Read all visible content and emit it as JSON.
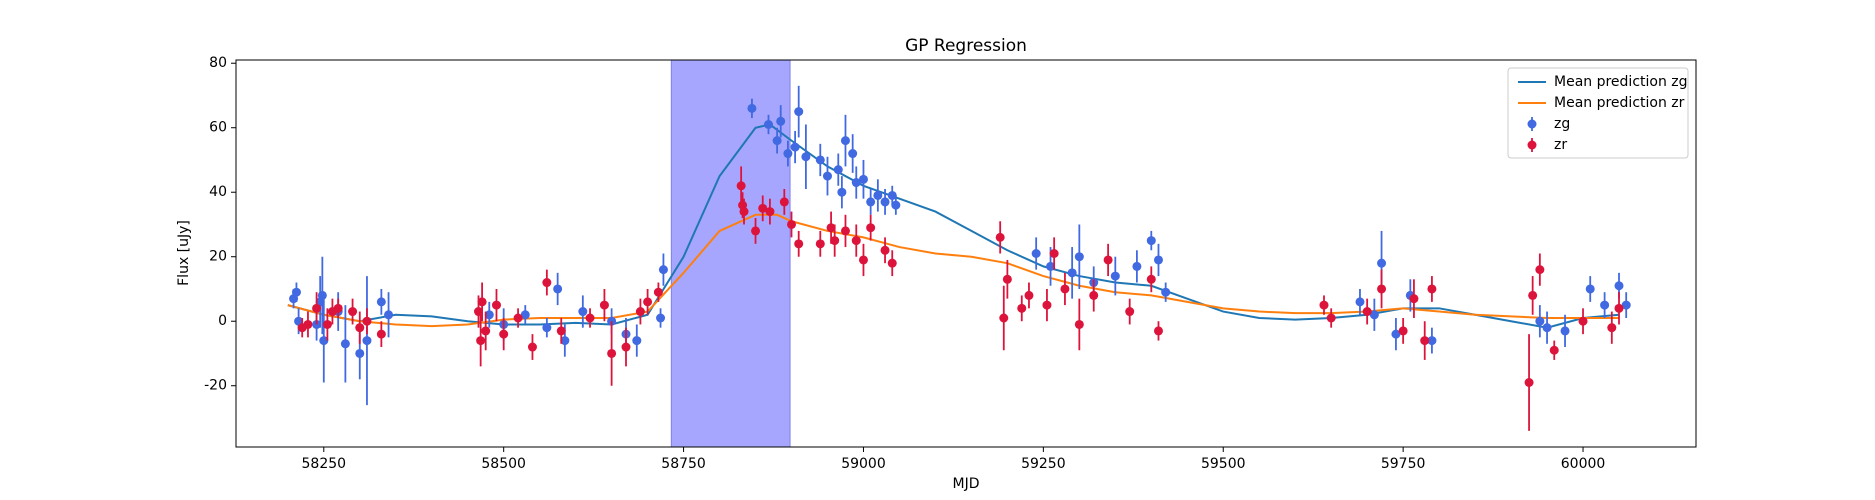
{
  "chart_data": {
    "type": "errorbar",
    "title": "GP Regression",
    "xlabel": "MJD",
    "ylabel": "Flux [uJy]",
    "xlim": [
      58128,
      60157
    ],
    "ylim": [
      -39,
      81
    ],
    "xticks": [
      58250,
      58500,
      58750,
      59000,
      59250,
      59500,
      59750,
      60000
    ],
    "yticks": [
      -20,
      0,
      20,
      40,
      60,
      80
    ],
    "legend": "upper right",
    "span": {
      "x": [
        58733,
        58898
      ],
      "color": "#a6a6ff"
    },
    "series": [
      {
        "name": "Mean prediction zg",
        "color": "#1f77b4",
        "type": "line",
        "x": [
          58200,
          58250,
          58300,
          58350,
          58400,
          58450,
          58500,
          58550,
          58600,
          58650,
          58700,
          58750,
          58800,
          58850,
          58870,
          58900,
          58950,
          59000,
          59050,
          59100,
          59150,
          59200,
          59250,
          59300,
          59350,
          59400,
          59450,
          59500,
          59550,
          59600,
          59650,
          59700,
          59750,
          59800,
          59850,
          59900,
          59950,
          60000,
          60050
        ],
        "values": [
          5,
          2,
          0,
          2,
          1.5,
          0,
          -1,
          -1,
          -0.5,
          -1,
          2,
          20,
          45,
          60,
          61,
          56,
          48,
          42,
          38,
          34,
          28,
          22,
          17,
          14,
          12,
          11,
          7,
          3,
          1,
          0.5,
          1,
          2,
          4,
          4,
          2,
          0,
          -2,
          1,
          2
        ]
      },
      {
        "name": "Mean prediction zr",
        "color": "#ff7f0e",
        "type": "line",
        "x": [
          58200,
          58250,
          58300,
          58350,
          58400,
          58450,
          58500,
          58550,
          58600,
          58650,
          58700,
          58750,
          58800,
          58850,
          58880,
          58900,
          58950,
          59000,
          59050,
          59100,
          59150,
          59200,
          59250,
          59300,
          59350,
          59400,
          59450,
          59500,
          59550,
          59600,
          59650,
          59700,
          59750,
          59800,
          59850,
          59900,
          59950,
          60000,
          60050
        ],
        "values": [
          5,
          2,
          0,
          -1,
          -1.5,
          -1,
          0.5,
          1,
          1,
          1,
          3,
          15,
          28,
          33,
          33,
          31,
          28,
          26,
          23,
          21,
          20,
          18,
          14,
          11,
          9,
          8,
          6,
          4,
          3,
          2.5,
          2.5,
          3,
          4,
          3,
          2,
          1.5,
          1,
          1,
          1
        ]
      },
      {
        "name": "zg",
        "color": "#4169e1",
        "type": "errorbar",
        "x": [
          58208,
          58212,
          58215,
          58240,
          58245,
          58248,
          58250,
          58270,
          58280,
          58300,
          58310,
          58330,
          58340,
          58480,
          58500,
          58530,
          58560,
          58575,
          58585,
          58610,
          58650,
          58670,
          58685,
          58718,
          58722,
          58845,
          58868,
          58880,
          58885,
          58895,
          58905,
          58910,
          58920,
          58940,
          58950,
          58965,
          58970,
          58975,
          58985,
          58990,
          59000,
          59010,
          59020,
          59030,
          59040,
          59045,
          59240,
          59260,
          59290,
          59300,
          59320,
          59350,
          59380,
          59400,
          59410,
          59420,
          59690,
          59710,
          59720,
          59740,
          59760,
          59790,
          59940,
          59950,
          59975,
          60010,
          60030,
          60050,
          60060
        ],
        "values": [
          7,
          9,
          0,
          -1,
          6,
          8,
          -6,
          3,
          -7,
          -10,
          -6,
          6,
          2,
          2,
          -1,
          2,
          -2,
          10,
          -6,
          3,
          0,
          -4,
          -6,
          1,
          16,
          66,
          61,
          56,
          62,
          52,
          54,
          65,
          51,
          50,
          45,
          47,
          40,
          56,
          52,
          43,
          44,
          37,
          39,
          37,
          39,
          36,
          21,
          17,
          15,
          20,
          12,
          14,
          17,
          25,
          19,
          9,
          6,
          2,
          18,
          -4,
          8,
          -6,
          0,
          -2,
          -3,
          10,
          5,
          11,
          5
        ],
        "errors": [
          3,
          3,
          4,
          5,
          8,
          12,
          13,
          6,
          12,
          8,
          20,
          4,
          7,
          4,
          5,
          3,
          3,
          5,
          5,
          5,
          4,
          5,
          5,
          3,
          5,
          3,
          3,
          4,
          5,
          4,
          5,
          8,
          10,
          5,
          6,
          5,
          5,
          8,
          6,
          5,
          6,
          4,
          5,
          4,
          3,
          3,
          5,
          6,
          8,
          10,
          5,
          6,
          5,
          3,
          5,
          3,
          4,
          5,
          10,
          5,
          5,
          4,
          5,
          5,
          5,
          4,
          4,
          4,
          4
        ]
      },
      {
        "name": "zr",
        "color": "#dc143c",
        "type": "errorbar",
        "x": [
          58220,
          58228,
          58240,
          58255,
          58262,
          58270,
          58290,
          58300,
          58310,
          58330,
          58465,
          58468,
          58470,
          58475,
          58490,
          58500,
          58520,
          58540,
          58560,
          58580,
          58620,
          58640,
          58650,
          58670,
          58690,
          58700,
          58715,
          58830,
          58832,
          58834,
          58850,
          58860,
          58870,
          58890,
          58900,
          58910,
          58940,
          58955,
          58960,
          58975,
          58990,
          59000,
          59010,
          59030,
          59040,
          59190,
          59195,
          59200,
          59220,
          59230,
          59255,
          59265,
          59280,
          59300,
          59320,
          59340,
          59370,
          59400,
          59410,
          59640,
          59650,
          59700,
          59720,
          59750,
          59765,
          59780,
          59790,
          59925,
          59930,
          59940,
          59960,
          60000,
          60040,
          60050
        ],
        "values": [
          -2,
          -1,
          4,
          -1,
          3,
          4,
          3,
          -2,
          0,
          -4,
          3,
          -6,
          6,
          -3,
          5,
          -4,
          1,
          -8,
          12,
          -3,
          1,
          5,
          -10,
          -8,
          3,
          6,
          9,
          42,
          36,
          34,
          28,
          35,
          34,
          37,
          30,
          24,
          24,
          29,
          25,
          28,
          25,
          19,
          29,
          22,
          18,
          26,
          1,
          13,
          4,
          8,
          5,
          21,
          10,
          -1,
          8,
          19,
          3,
          13,
          -3,
          5,
          1,
          3,
          10,
          -3,
          7,
          -6,
          10,
          -19,
          8,
          16,
          -9,
          0,
          -2,
          4
        ],
        "errors": [
          3,
          4,
          5,
          5,
          4,
          3,
          4,
          5,
          4,
          4,
          5,
          8,
          6,
          6,
          5,
          5,
          3,
          4,
          4,
          4,
          3,
          5,
          10,
          6,
          4,
          4,
          3,
          6,
          4,
          4,
          4,
          4,
          4,
          4,
          4,
          4,
          4,
          5,
          5,
          5,
          5,
          5,
          4,
          4,
          4,
          5,
          10,
          6,
          4,
          4,
          5,
          5,
          5,
          8,
          5,
          5,
          4,
          4,
          3,
          3,
          3,
          4,
          6,
          4,
          6,
          6,
          4,
          15,
          6,
          5,
          3,
          4,
          5,
          5
        ]
      }
    ]
  }
}
